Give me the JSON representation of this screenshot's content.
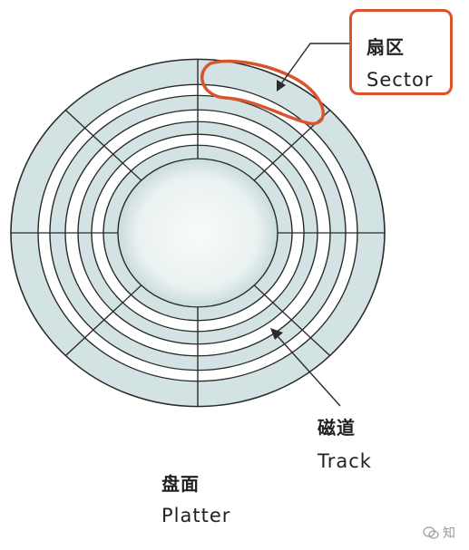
{
  "labels": {
    "sector_cn": "扇区",
    "sector_en": "Sector",
    "track_cn": "磁道",
    "track_en": "Track",
    "platter_cn": "盘面",
    "platter_en": "Platter"
  },
  "watermark": {
    "text": "知",
    "icon": "zhihu-chat-icon"
  },
  "colors": {
    "platter_fill": "#d3e3e3",
    "ring_white": "#ffffff",
    "line": "#2a2a2a",
    "highlight": "#d9532b"
  }
}
